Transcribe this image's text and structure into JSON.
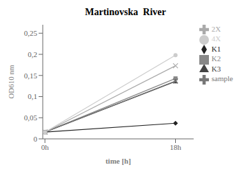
{
  "chart_data": {
    "type": "line",
    "title": "Martinovska  River",
    "x_label": "time [h]",
    "y_label": "OD610 nm",
    "x": [
      0,
      18
    ],
    "series": [
      {
        "name": "K1",
        "color": "#222222",
        "marker": "diamond",
        "values": [
          0.016,
          0.037
        ]
      },
      {
        "name": "K2",
        "color": "#888888",
        "marker": "square",
        "values": [
          0.016,
          0.143
        ]
      },
      {
        "name": "K3",
        "color": "#444444",
        "marker": "triangle",
        "values": [
          0.016,
          0.136
        ]
      },
      {
        "name": "sample",
        "color": "#777777",
        "marker": "x",
        "values": [
          0.016,
          0.137
        ]
      },
      {
        "name": "2X",
        "color": "#aaaaaa",
        "marker": "x",
        "values": [
          0.016,
          0.173
        ]
      },
      {
        "name": "4X",
        "color": "#cccccc",
        "marker": "circle",
        "values": [
          0.016,
          0.198
        ]
      }
    ],
    "xlim": [
      -0.3,
      20.5
    ],
    "xticks": [
      {
        "value": 0,
        "label": "0h"
      },
      {
        "value": 18,
        "label": "18h"
      }
    ],
    "ylim": [
      0,
      0.27
    ],
    "yticks": [
      0,
      {
        "value": 0.05,
        "label": "0,05"
      },
      {
        "value": 0.1,
        "label": "0,1"
      },
      {
        "value": 0.15,
        "label": "0,15"
      },
      {
        "value": 0.2,
        "label": "0,2"
      },
      {
        "value": 0.25,
        "label": "0,25"
      }
    ],
    "grid": false,
    "legend": "upper right"
  }
}
